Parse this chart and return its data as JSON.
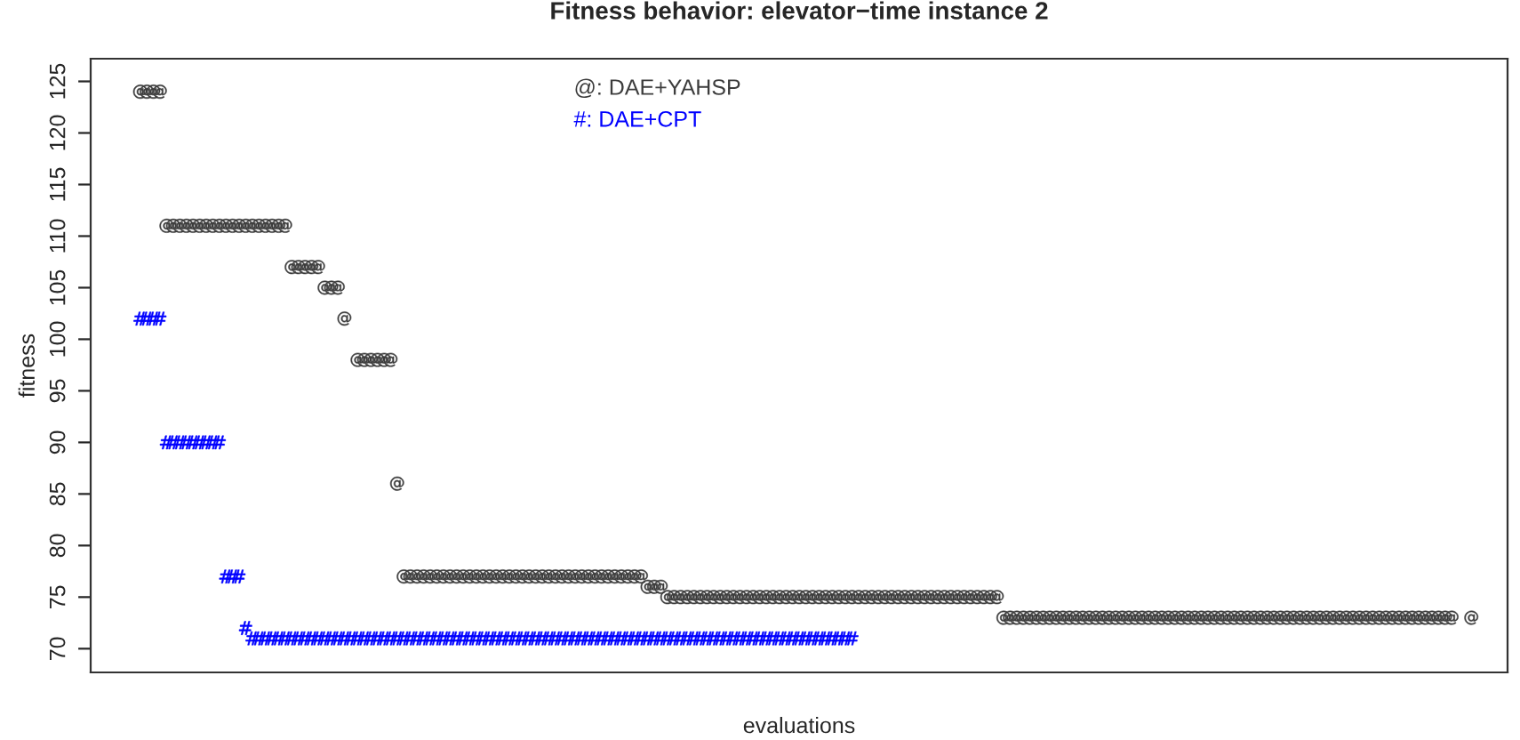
{
  "chart_data": {
    "type": "scatter",
    "title": "Fitness behavior: elevator−time instance 2",
    "xlabel": "evaluations",
    "ylabel": "fitness",
    "categories": [
      null,
      null,
      null,
      null,
      null,
      null,
      null,
      null,
      null,
      null,
      null,
      null,
      null,
      null,
      null,
      null,
      null,
      null,
      null,
      null,
      null,
      null,
      null,
      null,
      null,
      null,
      null,
      null,
      null,
      null,
      null,
      null,
      null,
      null,
      null,
      null,
      null,
      null,
      null,
      null,
      null,
      null,
      null,
      null,
      null,
      null,
      null,
      null,
      null,
      null,
      null,
      null,
      null,
      null,
      null,
      null,
      null,
      null,
      null,
      null,
      null,
      null,
      null,
      null,
      null,
      null,
      null,
      null,
      null,
      null,
      null,
      null,
      null,
      null,
      null,
      null,
      null,
      null,
      null,
      null,
      null,
      null,
      null,
      null,
      null,
      null,
      null,
      null,
      null,
      null,
      null,
      null,
      null,
      null,
      null,
      null,
      null,
      null,
      null,
      null,
      null,
      null,
      null,
      null,
      null,
      null,
      null,
      null,
      null,
      null,
      null,
      null,
      null,
      null,
      null,
      null,
      null,
      null,
      null,
      null,
      null,
      null,
      null,
      null,
      null,
      null,
      null,
      null,
      null,
      null,
      null,
      null,
      null,
      null,
      null,
      null,
      null,
      null,
      null,
      null,
      null,
      null,
      null,
      null,
      null,
      null,
      null,
      null,
      null,
      null,
      null,
      null,
      null,
      null,
      null,
      null,
      null,
      null,
      null,
      null,
      null,
      null,
      null,
      null,
      null,
      null,
      null,
      null,
      null,
      null,
      null,
      null,
      null,
      null,
      null,
      null,
      null,
      null,
      null,
      null,
      null,
      null,
      null,
      null,
      null,
      null,
      null,
      null,
      null,
      null,
      null,
      null,
      null,
      null,
      null,
      null,
      null,
      null,
      null,
      null,
      null,
      null,
      null,
      null,
      null,
      null,
      null,
      null,
      null,
      null,
      null,
      null,
      null,
      null,
      null
    ],
    "series": [
      {
        "name": "@: DAE+YAHSP",
        "color": "#3c3c3c",
        "values": [
          null,
          null,
          null,
          null,
          null,
          null,
          null,
          124,
          124,
          124,
          124,
          111,
          111,
          111,
          111,
          111,
          111,
          111,
          111,
          111,
          111,
          111,
          111,
          111,
          111,
          111,
          111,
          111,
          111,
          111,
          107,
          107,
          107,
          107,
          107,
          105,
          105,
          105,
          102,
          null,
          98,
          98,
          98,
          98,
          98,
          98,
          86,
          77,
          77,
          77,
          77,
          77,
          77,
          77,
          77,
          77,
          77,
          77,
          77,
          77,
          77,
          77,
          77,
          77,
          77,
          77,
          77,
          77,
          77,
          77,
          77,
          77,
          77,
          77,
          77,
          77,
          77,
          77,
          77,
          77,
          77,
          77,
          77,
          77,
          76,
          76,
          76,
          75,
          75,
          75,
          75,
          75,
          75,
          75,
          75,
          75,
          75,
          75,
          75,
          75,
          75,
          75,
          75,
          75,
          75,
          75,
          75,
          75,
          75,
          75,
          75,
          75,
          75,
          75,
          75,
          75,
          75,
          75,
          75,
          75,
          75,
          75,
          75,
          75,
          75,
          75,
          75,
          75,
          75,
          75,
          75,
          75,
          75,
          75,
          75,
          75,
          75,
          75,
          73,
          73,
          73,
          73,
          73,
          73,
          73,
          73,
          73,
          73,
          73,
          73,
          73,
          73,
          73,
          73,
          73,
          73,
          73,
          73,
          73,
          73,
          73,
          73,
          73,
          73,
          73,
          73,
          73,
          73,
          73,
          73,
          73,
          73,
          73,
          73,
          73,
          73,
          73,
          73,
          73,
          73,
          73,
          73,
          73,
          73,
          73,
          73,
          73,
          73,
          73,
          73,
          73,
          73,
          73,
          73,
          73,
          73,
          73,
          73,
          73,
          73,
          73,
          73,
          73,
          73,
          73,
          73,
          73,
          null,
          null,
          73,
          null,
          null,
          null,
          null,
          null
        ]
      },
      {
        "name": "#: DAE+CPT",
        "color": "#0000ff",
        "values": [
          null,
          null,
          null,
          null,
          null,
          null,
          null,
          102,
          102,
          102,
          102,
          90,
          90,
          90,
          90,
          90,
          90,
          90,
          90,
          90,
          77,
          77,
          77,
          72,
          71,
          71,
          71,
          71,
          71,
          71,
          71,
          71,
          71,
          71,
          71,
          71,
          71,
          71,
          71,
          71,
          71,
          71,
          71,
          71,
          71,
          71,
          71,
          71,
          71,
          71,
          71,
          71,
          71,
          71,
          71,
          71,
          71,
          71,
          71,
          71,
          71,
          71,
          71,
          71,
          71,
          71,
          71,
          71,
          71,
          71,
          71,
          71,
          71,
          71,
          71,
          71,
          71,
          71,
          71,
          71,
          71,
          71,
          71,
          71,
          71,
          71,
          71,
          71,
          71,
          71,
          71,
          71,
          71,
          71,
          71,
          71,
          71,
          71,
          71,
          71,
          71,
          71,
          71,
          71,
          71,
          71,
          71,
          71,
          71,
          71,
          71,
          71,
          71,
          71,
          71,
          71,
          null,
          null,
          null,
          null,
          null,
          null,
          null,
          null,
          null,
          null,
          null,
          null,
          null,
          null,
          null,
          null,
          null,
          null,
          null,
          null,
          null,
          null,
          null,
          null,
          null,
          null,
          null,
          null,
          null,
          null,
          null,
          null,
          null,
          null,
          null,
          null,
          null,
          null,
          null,
          null,
          null,
          null,
          null,
          null,
          null,
          null,
          null,
          null,
          null,
          null,
          null,
          null,
          null,
          null,
          null,
          null,
          null,
          null,
          null,
          null,
          null,
          null,
          null,
          null,
          null,
          null,
          null,
          null,
          null,
          null,
          null,
          null,
          null,
          null,
          null,
          null,
          null,
          null,
          null,
          null,
          null,
          null,
          null,
          null,
          null,
          null,
          null,
          null,
          null,
          null,
          null,
          null,
          null,
          null,
          null,
          null,
          null,
          null,
          null
        ]
      }
    ],
    "ylim": [
      67.7,
      127.2
    ],
    "yticks": [
      70,
      75,
      80,
      85,
      90,
      95,
      100,
      105,
      110,
      115,
      120,
      125
    ],
    "tick_labels": "y",
    "grid": false,
    "legend": "top"
  }
}
